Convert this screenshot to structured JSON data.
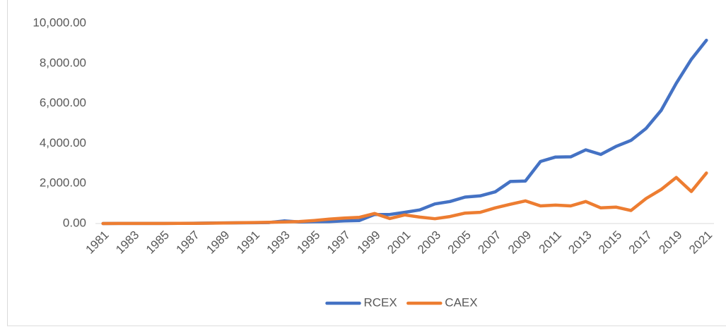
{
  "chart_data": {
    "type": "line",
    "categories": [
      "1981",
      null,
      "1983",
      null,
      "1985",
      null,
      "1987",
      null,
      "1989",
      null,
      "1991",
      null,
      "1993",
      null,
      "1995",
      null,
      "1997",
      null,
      "1999",
      null,
      "2001",
      null,
      "2003",
      null,
      "2005",
      null,
      "2007",
      null,
      "2009",
      null,
      "2011",
      null,
      "2013",
      null,
      "2015",
      null,
      "2017",
      null,
      "2019",
      null,
      "2021"
    ],
    "series": [
      {
        "name": "RCEX",
        "color": "#4472c4",
        "values": [
          0,
          2,
          3,
          4,
          5,
          8,
          15,
          20,
          30,
          35,
          40,
          50,
          130,
          80,
          90,
          100,
          130,
          150,
          450,
          450,
          560,
          680,
          980,
          1100,
          1320,
          1380,
          1580,
          2100,
          2120,
          3100,
          3320,
          3330,
          3680,
          3450,
          3850,
          4150,
          4750,
          5650,
          7000,
          8200,
          9150
        ]
      },
      {
        "name": "CAEX",
        "color": "#ed7d31",
        "values": [
          0,
          2,
          3,
          4,
          5,
          8,
          12,
          18,
          25,
          40,
          50,
          60,
          80,
          100,
          150,
          220,
          270,
          310,
          500,
          250,
          430,
          320,
          240,
          350,
          520,
          560,
          780,
          960,
          1130,
          880,
          920,
          880,
          1100,
          780,
          820,
          650,
          1250,
          1700,
          2300,
          1600,
          2520
        ]
      }
    ],
    "ylim": [
      0,
      10000
    ],
    "yticks": [
      {
        "value": 0,
        "label": "0.00"
      },
      {
        "value": 2000,
        "label": "2,000.00"
      },
      {
        "value": 4000,
        "label": "4,000.00"
      },
      {
        "value": 6000,
        "label": "6,000.00"
      },
      {
        "value": 8000,
        "label": "8,000.00"
      },
      {
        "value": 10000,
        "label": "10,000.00"
      }
    ],
    "legend": "bottom"
  }
}
